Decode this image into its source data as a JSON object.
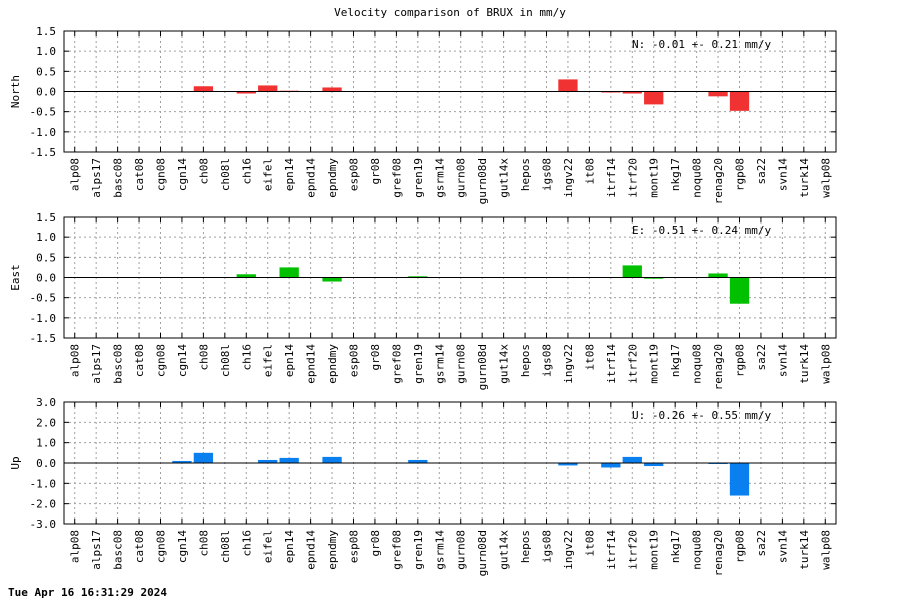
{
  "title": "Velocity comparison of BRUX in mm/y",
  "timestamp": "Tue Apr 16 16:31:29 2024",
  "chart_data": [
    {
      "type": "bar",
      "ylabel": "North",
      "annotation": "N:  -0.01 +-  0.21 mm/y",
      "color": "#f03232",
      "ylim": [
        -1.5,
        1.5
      ],
      "yticks": [
        1.5,
        1.0,
        0.5,
        0.0,
        -0.5,
        -1.0,
        -1.5
      ],
      "ytick_labels": [
        "1.5",
        "1.0",
        "0.5",
        "0.0",
        "-0.5",
        "-1.0",
        "-1.5"
      ],
      "grid": true,
      "categories": [
        "alp08",
        "alps17",
        "basc08",
        "cat08",
        "cgn08",
        "cgn14",
        "ch08",
        "ch08l",
        "ch16",
        "eifel",
        "epn14",
        "epnd14",
        "epndmy",
        "esp08",
        "gr08",
        "gref08",
        "gren19",
        "gsrm14",
        "gurn08",
        "gurn08d",
        "gut14x",
        "hepos",
        "igs08",
        "ingv22",
        "it08",
        "itrf14",
        "itrf20",
        "mont19",
        "nkg17",
        "noqu08",
        "renag20",
        "rgp08",
        "sa22",
        "svn14",
        "turk14",
        "walp08"
      ],
      "values": [
        0,
        0,
        0,
        0,
        0,
        0,
        0.13,
        0,
        -0.05,
        0.15,
        0.02,
        0,
        0.1,
        0,
        0,
        0,
        0,
        0,
        0,
        0,
        0,
        0,
        0,
        0.3,
        0,
        -0.02,
        -0.05,
        -0.32,
        0,
        0,
        -0.12,
        -0.48,
        0,
        0,
        0,
        0
      ]
    },
    {
      "type": "bar",
      "ylabel": "East",
      "annotation": "E:  -0.51 +-  0.24 mm/y",
      "color": "#00c000",
      "ylim": [
        -1.5,
        1.5
      ],
      "yticks": [
        1.5,
        1.0,
        0.5,
        0.0,
        -0.5,
        -1.0,
        -1.5
      ],
      "ytick_labels": [
        "1.5",
        "1.0",
        "0.5",
        "0.0",
        "-0.5",
        "-1.0",
        "-1.5"
      ],
      "grid": true,
      "categories": [
        "alp08",
        "alps17",
        "basc08",
        "cat08",
        "cgn08",
        "cgn14",
        "ch08",
        "ch08l",
        "ch16",
        "eifel",
        "epn14",
        "epnd14",
        "epndmy",
        "esp08",
        "gr08",
        "gref08",
        "gren19",
        "gsrm14",
        "gurn08",
        "gurn08d",
        "gut14x",
        "hepos",
        "igs08",
        "ingv22",
        "it08",
        "itrf14",
        "itrf20",
        "mont19",
        "nkg17",
        "noqu08",
        "renag20",
        "rgp08",
        "sa22",
        "svn14",
        "turk14",
        "walp08"
      ],
      "values": [
        0,
        0,
        0,
        0,
        0,
        0,
        0,
        0,
        0.08,
        0,
        0.25,
        0,
        -0.1,
        0,
        0,
        0,
        0.03,
        0,
        0,
        0,
        0,
        0,
        0,
        0,
        0,
        0,
        0.3,
        -0.03,
        0,
        0,
        0.1,
        -0.65,
        0,
        0,
        0,
        0
      ]
    },
    {
      "type": "bar",
      "ylabel": "Up",
      "annotation": "U:  -0.26 +-  0.55 mm/y",
      "color": "#0a7ff0",
      "ylim": [
        -3.0,
        3.0
      ],
      "yticks": [
        3.0,
        2.0,
        1.0,
        0.0,
        -1.0,
        -2.0,
        -3.0
      ],
      "ytick_labels": [
        "3.0",
        "2.0",
        "1.0",
        "0.0",
        "-1.0",
        "-2.0",
        "-3.0"
      ],
      "grid": true,
      "categories": [
        "alp08",
        "alps17",
        "basc08",
        "cat08",
        "cgn08",
        "cgn14",
        "ch08",
        "ch08l",
        "ch16",
        "eifel",
        "epn14",
        "epnd14",
        "epndmy",
        "esp08",
        "gr08",
        "gref08",
        "gren19",
        "gsrm14",
        "gurn08",
        "gurn08d",
        "gut14x",
        "hepos",
        "igs08",
        "ingv22",
        "it08",
        "itrf14",
        "itrf20",
        "mont19",
        "nkg17",
        "noqu08",
        "renag20",
        "rgp08",
        "sa22",
        "svn14",
        "turk14",
        "walp08"
      ],
      "values": [
        0,
        0,
        0,
        0,
        0,
        0.1,
        0.5,
        0,
        0,
        0.15,
        0.25,
        0,
        0.3,
        0,
        0,
        0,
        0.15,
        0,
        0,
        0,
        0,
        0,
        0,
        -0.12,
        0,
        -0.22,
        0.3,
        -0.15,
        0,
        0,
        -0.05,
        -1.6,
        0,
        0,
        0,
        0
      ]
    }
  ]
}
